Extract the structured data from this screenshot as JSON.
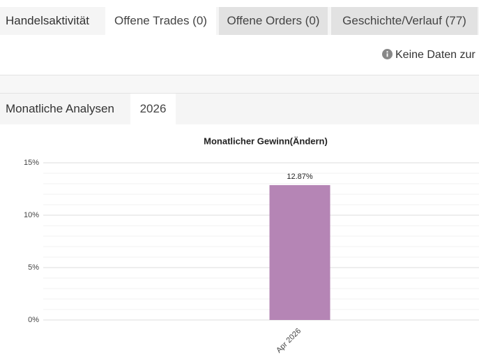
{
  "header": {
    "title": "Handelsaktivität",
    "tabs": [
      "Offene Trades (0)",
      "Offene Orders (0)",
      "Geschichte/Verlauf (77)"
    ]
  },
  "message": "Keine Daten zur",
  "section": {
    "title": "Monatliche Analysen",
    "tabs": [
      "2026"
    ]
  },
  "chart_data": {
    "type": "bar",
    "title": "Monatlicher Gewinn(Ändern)",
    "categories": [
      "Apr 2026"
    ],
    "values": [
      12.87
    ],
    "value_labels": [
      "12.87%"
    ],
    "color": "#b585b5",
    "ylim": [
      0,
      15
    ],
    "yticks": [
      {
        "value": 0,
        "label": "0%"
      },
      {
        "value": 5,
        "label": "5%"
      },
      {
        "value": 10,
        "label": "10%"
      },
      {
        "value": 15,
        "label": "15%"
      }
    ],
    "minor_yticks": [
      1,
      2,
      3,
      4,
      6,
      7,
      8,
      9,
      11,
      12,
      13,
      14
    ],
    "grid": true
  }
}
